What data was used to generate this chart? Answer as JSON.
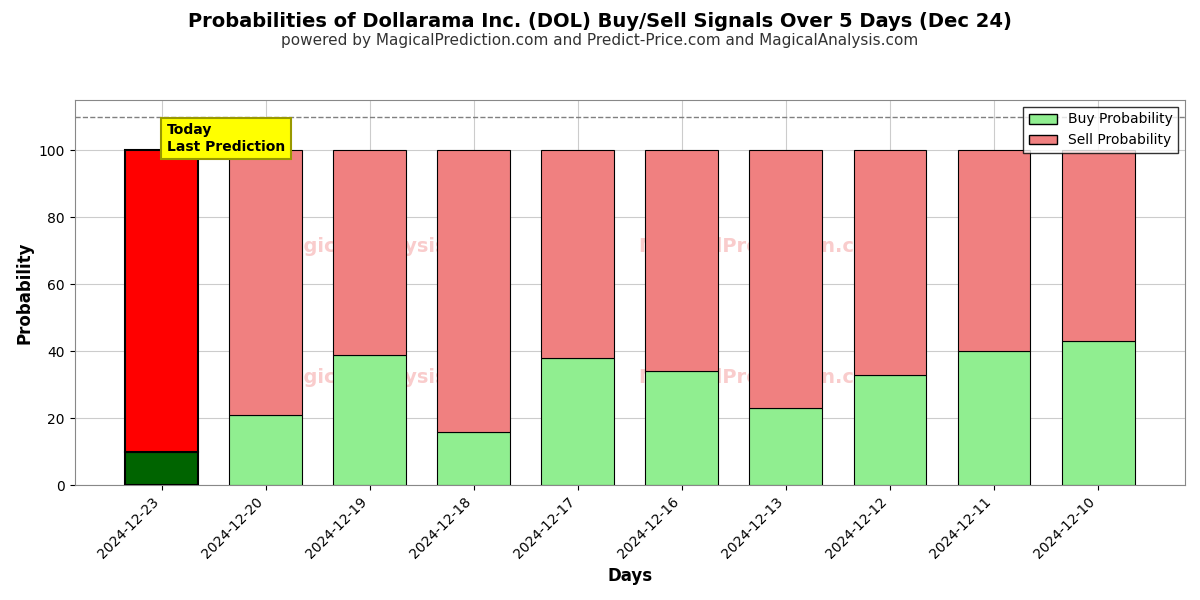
{
  "title": "Probabilities of Dollarama Inc. (DOL) Buy/Sell Signals Over 5 Days (Dec 24)",
  "subtitle": "powered by MagicalPrediction.com and Predict-Price.com and MagicalAnalysis.com",
  "xlabel": "Days",
  "ylabel": "Probability",
  "categories": [
    "2024-12-23",
    "2024-12-20",
    "2024-12-19",
    "2024-12-18",
    "2024-12-17",
    "2024-12-16",
    "2024-12-13",
    "2024-12-12",
    "2024-12-11",
    "2024-12-10"
  ],
  "buy_values": [
    10,
    21,
    39,
    16,
    38,
    34,
    23,
    33,
    40,
    43
  ],
  "sell_values": [
    90,
    79,
    61,
    84,
    62,
    66,
    77,
    67,
    60,
    57
  ],
  "today_bar_buy_color": "#006400",
  "today_bar_sell_color": "#FF0000",
  "other_bar_buy_color": "#90EE90",
  "other_bar_sell_color": "#F08080",
  "today_annotation_text": "Today\nLast Prediction",
  "today_annotation_bg": "#FFFF00",
  "legend_buy_label": "Buy Probability",
  "legend_sell_label": "Sell Probability",
  "ylim": [
    0,
    115
  ],
  "dashed_line_y": 110,
  "grid_color": "#CCCCCC",
  "bar_edge_color": "#000000",
  "bar_width": 0.7,
  "title_fontsize": 14,
  "subtitle_fontsize": 11,
  "axis_label_fontsize": 12,
  "tick_fontsize": 10
}
